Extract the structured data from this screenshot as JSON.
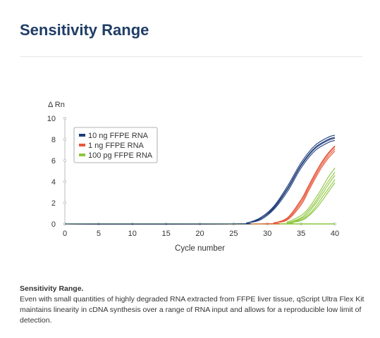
{
  "page": {
    "heading": "Sensitivity Range",
    "caption_title": "Sensitivity Range.",
    "caption_body": "Even with small quantities of highly degraded RNA extracted from FFPE liver tissue, qScript Ultra Flex Kit maintains linearity in cDNA synthesis over a range of RNA input and allows for a reproducible low limit of detection."
  },
  "chart_data": {
    "type": "line",
    "title": "",
    "xlabel": "Cycle number",
    "ylabel": "Δ Rn",
    "xlim": [
      0,
      40
    ],
    "ylim": [
      0,
      10
    ],
    "xticks": [
      0,
      5,
      10,
      15,
      20,
      25,
      30,
      35,
      40
    ],
    "yticks": [
      0,
      2,
      4,
      6,
      8,
      10
    ],
    "grid": false,
    "legend_position": "top-left",
    "baseline_color": "#8cc63e",
    "series": [
      {
        "name": "10 ng FFPE RNA",
        "color": "#1f3d7a",
        "curves": [
          {
            "x": [
              0,
              25,
              27,
              29,
              31,
              33,
              35,
              37,
              39,
              40
            ],
            "y": [
              0,
              0,
              0.1,
              0.5,
              1.5,
              3.3,
              5.5,
              7.1,
              7.9,
              8.1
            ]
          },
          {
            "x": [
              0,
              25,
              27,
              29,
              31,
              33,
              35,
              37,
              39,
              40
            ],
            "y": [
              0,
              0,
              0.1,
              0.5,
              1.6,
              3.4,
              5.6,
              7.2,
              8.0,
              8.2
            ]
          },
          {
            "x": [
              0,
              25,
              27,
              29,
              31,
              33,
              35,
              37,
              39,
              40
            ],
            "y": [
              0,
              0,
              0.1,
              0.6,
              1.7,
              3.6,
              5.8,
              7.4,
              8.2,
              8.4
            ]
          },
          {
            "x": [
              0,
              25,
              27,
              29,
              31,
              33,
              35,
              37,
              39,
              40
            ],
            "y": [
              0,
              0,
              0.1,
              0.4,
              1.4,
              3.1,
              5.3,
              6.9,
              7.7,
              7.9
            ]
          }
        ]
      },
      {
        "name": "1 ng FFPE RNA",
        "color": "#e8573a",
        "curves": [
          {
            "x": [
              0,
              29,
              31,
              33,
              35,
              36,
              37,
              38,
              39,
              40
            ],
            "y": [
              0,
              0,
              0.1,
              0.6,
              2.2,
              3.4,
              4.6,
              5.7,
              6.6,
              7.3
            ]
          },
          {
            "x": [
              0,
              29,
              31,
              33,
              35,
              36,
              37,
              38,
              39,
              40
            ],
            "y": [
              0,
              0,
              0.1,
              0.5,
              2.0,
              3.2,
              4.4,
              5.5,
              6.4,
              7.1
            ]
          },
          {
            "x": [
              0,
              29,
              31,
              33,
              35,
              36,
              37,
              38,
              39,
              40
            ],
            "y": [
              0,
              0,
              0.1,
              0.4,
              1.8,
              3.0,
              4.2,
              5.3,
              6.2,
              6.9
            ]
          },
          {
            "x": [
              0,
              29,
              31,
              33,
              35,
              36,
              37,
              38,
              39,
              40
            ],
            "y": [
              0,
              0,
              0.1,
              0.6,
              2.3,
              3.5,
              4.7,
              5.8,
              6.7,
              7.4
            ]
          }
        ]
      },
      {
        "name": "100 pg FFPE RNA",
        "color": "#8cc63e",
        "curves": [
          {
            "x": [
              0,
              31,
              33,
              35,
              36,
              37,
              38,
              39,
              40
            ],
            "y": [
              0,
              0,
              0.2,
              0.8,
              1.4,
              2.3,
              3.3,
              4.4,
              5.3
            ]
          },
          {
            "x": [
              0,
              31,
              33,
              35,
              36,
              37,
              38,
              39,
              40
            ],
            "y": [
              0,
              0,
              0.1,
              0.6,
              1.2,
              2.0,
              3.0,
              4.0,
              4.9
            ]
          },
          {
            "x": [
              0,
              31,
              33,
              35,
              36,
              37,
              38,
              39,
              40
            ],
            "y": [
              0,
              0,
              0.1,
              0.5,
              1.0,
              1.8,
              2.7,
              3.7,
              4.6
            ]
          },
          {
            "x": [
              0,
              31,
              33,
              35,
              36,
              37,
              38,
              39,
              40
            ],
            "y": [
              0,
              0,
              0.1,
              0.4,
              0.8,
              1.5,
              2.4,
              3.3,
              4.2
            ]
          },
          {
            "x": [
              0,
              31,
              33,
              35,
              36,
              37,
              38,
              39,
              40
            ],
            "y": [
              0,
              0,
              0.1,
              0.3,
              0.7,
              1.3,
              2.1,
              3.0,
              3.9
            ]
          }
        ]
      }
    ]
  }
}
